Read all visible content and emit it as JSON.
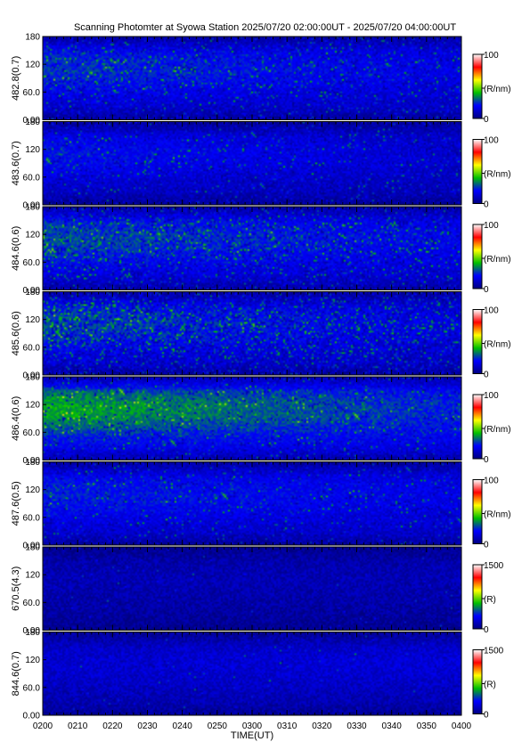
{
  "title": "Scanning Photomter at Syowa Station 2025/07/20 02:00:00UT - 2025/07/20 04:00:00UT",
  "chart_data": {
    "type": "heatmap",
    "xlabel": "TIME(UT)",
    "x_tick_labels": [
      "0200",
      "0210",
      "0220",
      "0230",
      "0240",
      "0250",
      "0300",
      "0310",
      "0320",
      "0330",
      "0340",
      "0350",
      "0400"
    ],
    "y_tick_labels": [
      "0.00",
      "60.0",
      "120",
      "180"
    ],
    "ylim": [
      0,
      180
    ],
    "colorscale": [
      "#000080",
      "#0000ff",
      "#00c000",
      "#ffff00",
      "#ff0000",
      "#ffffff"
    ],
    "panels": [
      {
        "ylabel": "482.8(0.7)",
        "cbar_unit": "(R/nm)",
        "cbar_max": "100",
        "cbar_min": "0",
        "intensity": 0.3,
        "bright_start": 0.55,
        "bright_end": 0.2,
        "speckle": 0.1
      },
      {
        "ylabel": "483.6(0.7)",
        "cbar_unit": "(R/nm)",
        "cbar_max": "100",
        "cbar_min": "0",
        "intensity": 0.24,
        "bright_start": 0.45,
        "bright_end": 0.15,
        "speckle": 0.06
      },
      {
        "ylabel": "484.6(0.6)",
        "cbar_unit": "(R/nm)",
        "cbar_max": "100",
        "cbar_min": "0",
        "intensity": 0.34,
        "bright_start": 0.6,
        "bright_end": 0.22,
        "speckle": 0.14
      },
      {
        "ylabel": "485.6(0.6)",
        "cbar_unit": "(R/nm)",
        "cbar_max": "100",
        "cbar_min": "0",
        "intensity": 0.3,
        "bright_start": 0.62,
        "bright_end": 0.18,
        "speckle": 0.22
      },
      {
        "ylabel": "486.4(0.6)",
        "cbar_unit": "(R/nm)",
        "cbar_max": "100",
        "cbar_min": "0",
        "intensity": 0.42,
        "bright_start": 0.85,
        "bright_end": 0.3,
        "speckle": 0.05
      },
      {
        "ylabel": "487.6(0.5)",
        "cbar_unit": "(R/nm)",
        "cbar_max": "100",
        "cbar_min": "0",
        "intensity": 0.3,
        "bright_start": 0.45,
        "bright_end": 0.22,
        "speckle": 0.05
      },
      {
        "ylabel": "670.5(4.3)",
        "cbar_unit": "(R)",
        "cbar_max": "1500",
        "cbar_min": "0",
        "intensity": 0.12,
        "bright_start": 0.14,
        "bright_end": 0.14,
        "speckle": 0.01
      },
      {
        "ylabel": "844.6(0.7)",
        "cbar_unit": "(R)",
        "cbar_max": "1500",
        "cbar_min": "0",
        "intensity": 0.2,
        "bright_start": 0.2,
        "bright_end": 0.24,
        "speckle": 0.01
      }
    ]
  }
}
